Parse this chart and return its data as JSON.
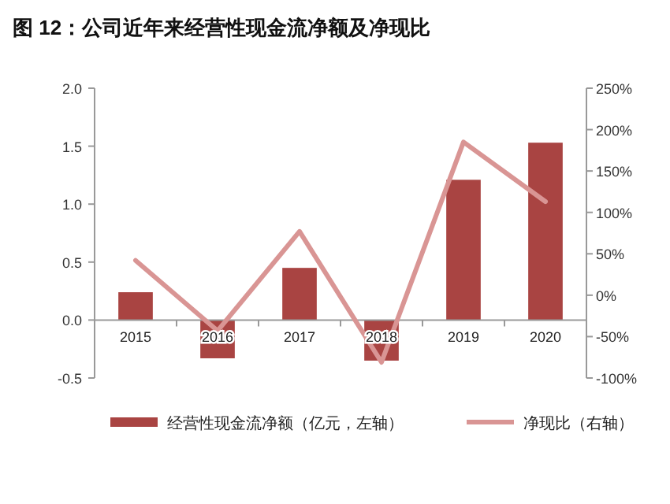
{
  "chart_data": {
    "type": "bar",
    "title": "图 12：公司近年来经营性现金流净额及净现比",
    "categories": [
      "2015",
      "2016",
      "2017",
      "2018",
      "2019",
      "2020"
    ],
    "series": [
      {
        "name": "经营性现金流净额（亿元，左轴）",
        "color": "#a94442",
        "values": [
          0.24,
          -0.33,
          0.45,
          -0.35,
          1.21,
          1.53
        ]
      },
      {
        "name": "净现比（右轴）",
        "type": "line",
        "axis": "y2",
        "color": "#d99594",
        "values": [
          42,
          -43,
          77,
          -81,
          185,
          113
        ]
      }
    ],
    "ylim": [
      -0.5,
      2.0
    ],
    "yticks": [
      {
        "value": -0.5,
        "label": "-0.5"
      },
      {
        "value": 0,
        "label": "0.0"
      },
      {
        "value": 0.5,
        "label": "0.5"
      },
      {
        "value": 1,
        "label": "1.0"
      },
      {
        "value": 1.5,
        "label": "1.5"
      },
      {
        "value": 2,
        "label": "2.0"
      }
    ],
    "y2lim": [
      -100,
      250
    ],
    "y2ticks": [
      {
        "value": -100,
        "label": "-100%"
      },
      {
        "value": -50,
        "label": "-50%"
      },
      {
        "value": 0,
        "label": "0%"
      },
      {
        "value": 50,
        "label": "50%"
      },
      {
        "value": 100,
        "label": "100%"
      },
      {
        "value": 150,
        "label": "150%"
      },
      {
        "value": 200,
        "label": "200%"
      },
      {
        "value": 250,
        "label": "250%"
      }
    ],
    "grid": false,
    "legend": "bottom"
  }
}
